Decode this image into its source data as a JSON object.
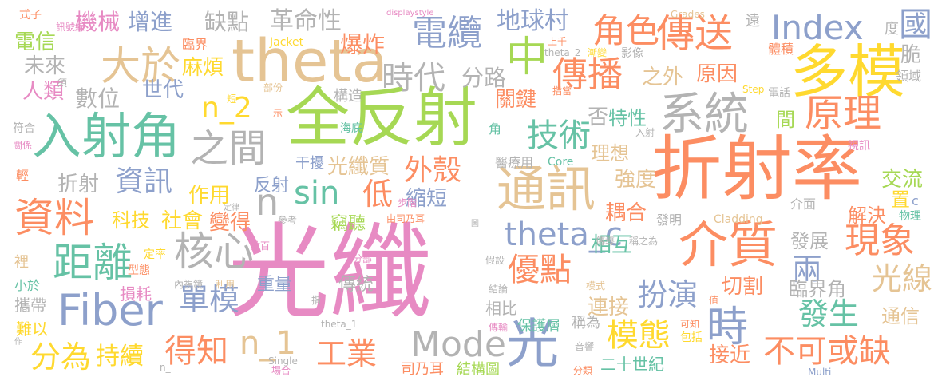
{
  "words": [
    {
      "text": "光纖",
      "color": "#e78ac3"
    },
    {
      "text": "折射率",
      "color": "#fc8d62"
    },
    {
      "text": "全反射",
      "color": "#a6d854"
    },
    {
      "text": "theta",
      "color": "#e5c494"
    },
    {
      "text": "多模",
      "color": "#ffd92f"
    },
    {
      "text": "入射角",
      "color": "#66c2a5"
    },
    {
      "text": "通訊",
      "color": "#e5c494"
    },
    {
      "text": "介質",
      "color": "#fc8d62"
    },
    {
      "text": "Fiber",
      "color": "#8da0cb"
    },
    {
      "text": "系統",
      "color": "#b3b3b3"
    },
    {
      "text": "光",
      "color": "#8da0cb"
    },
    {
      "text": "時",
      "color": "#8da0cb"
    },
    {
      "text": "距離",
      "color": "#66c2a5"
    },
    {
      "text": "資料",
      "color": "#fc8d62"
    },
    {
      "text": "大於",
      "color": "#e5c494"
    },
    {
      "text": "原理",
      "color": "#fc8d62"
    },
    {
      "text": "核心",
      "color": "#b3b3b3"
    },
    {
      "text": "傳送",
      "color": "#fc8d62"
    },
    {
      "text": "之間",
      "color": "#b3b3b3"
    },
    {
      "text": "中",
      "color": "#a6d854"
    },
    {
      "text": "電纜",
      "color": "#8da0cb"
    },
    {
      "text": "Mode",
      "color": "#b3b3b3"
    },
    {
      "text": "現象",
      "color": "#fc8d62"
    },
    {
      "text": "傳播",
      "color": "#fc8d62"
    },
    {
      "text": "角色",
      "color": "#fc8d62"
    },
    {
      "text": "theta_c",
      "color": "#8da0cb"
    },
    {
      "text": "優點",
      "color": "#fc8d62"
    },
    {
      "text": "Index",
      "color": "#8da0cb"
    },
    {
      "text": "國",
      "color": "#8da0cb"
    },
    {
      "text": "不可或缺",
      "color": "#fc8d62"
    },
    {
      "text": "時代",
      "color": "#b3b3b3"
    },
    {
      "text": "技術",
      "color": "#66c2a5"
    },
    {
      "text": "得知",
      "color": "#fc8d62"
    },
    {
      "text": "n_1",
      "color": "#e5c494"
    },
    {
      "text": "sin",
      "color": "#66c2a5"
    },
    {
      "text": "低",
      "color": "#fc8d62"
    },
    {
      "text": "n",
      "color": "#b3b3b3"
    },
    {
      "text": "分為",
      "color": "#ffd92f"
    },
    {
      "text": "單模",
      "color": "#8da0cb"
    },
    {
      "text": "工業",
      "color": "#fc8d62"
    },
    {
      "text": "模態",
      "color": "#ffd92f"
    },
    {
      "text": "n_2",
      "color": "#ffd92f"
    },
    {
      "text": "光線",
      "color": "#e5c494"
    },
    {
      "text": "扮演",
      "color": "#8da0cb"
    },
    {
      "text": "發生",
      "color": "#66c2a5"
    },
    {
      "text": "兩",
      "color": "#8da0cb"
    },
    {
      "text": "外殼",
      "color": "#fc8d62"
    },
    {
      "text": "資訊",
      "color": "#8da0cb"
    },
    {
      "text": "地球村",
      "color": "#8da0cb"
    },
    {
      "text": "革命性",
      "color": "#b3b3b3"
    },
    {
      "text": "機械",
      "color": "#e78ac3"
    },
    {
      "text": "增進",
      "color": "#8da0cb"
    },
    {
      "text": "缺點",
      "color": "#b3b3b3"
    },
    {
      "text": "爆炸",
      "color": "#fc8d62"
    },
    {
      "text": "電信",
      "color": "#a6d854"
    },
    {
      "text": "未來",
      "color": "#b3b3b3"
    },
    {
      "text": "人類",
      "color": "#e78ac3"
    },
    {
      "text": "數位",
      "color": "#b3b3b3"
    },
    {
      "text": "世代",
      "color": "#8da0cb"
    },
    {
      "text": "麻煩",
      "color": "#ffd92f"
    },
    {
      "text": "分路",
      "color": "#b3b3b3"
    },
    {
      "text": "之外",
      "color": "#e5c494"
    },
    {
      "text": "原因",
      "color": "#fc8d62"
    },
    {
      "text": "關鍵",
      "color": "#fc8d62"
    },
    {
      "text": "否",
      "color": "#b3b3b3"
    },
    {
      "text": "特性",
      "color": "#66c2a5"
    },
    {
      "text": "理想",
      "color": "#e5c494"
    },
    {
      "text": "間",
      "color": "#a6d854"
    },
    {
      "text": "光纖質",
      "color": "#e5c494"
    },
    {
      "text": "強度",
      "color": "#e5c494"
    },
    {
      "text": "交流",
      "color": "#a6d854"
    },
    {
      "text": "縮短",
      "color": "#8da0cb"
    },
    {
      "text": "置",
      "color": "#ffd92f"
    },
    {
      "text": "耦合",
      "color": "#fc8d62"
    },
    {
      "text": "解決",
      "color": "#fc8d62"
    },
    {
      "text": "相互",
      "color": "#66c2a5"
    },
    {
      "text": "發展",
      "color": "#b3b3b3"
    },
    {
      "text": "作用",
      "color": "#ffd92f"
    },
    {
      "text": "反射",
      "color": "#8da0cb"
    },
    {
      "text": "折射",
      "color": "#b3b3b3"
    },
    {
      "text": "科技",
      "color": "#ffd92f"
    },
    {
      "text": "社會",
      "color": "#ffd92f"
    },
    {
      "text": "變得",
      "color": "#fc8d62"
    },
    {
      "text": "持續",
      "color": "#ffd92f"
    },
    {
      "text": "切割",
      "color": "#fc8d62"
    },
    {
      "text": "臨界角",
      "color": "#b3b3b3"
    },
    {
      "text": "連接",
      "color": "#e5c494"
    },
    {
      "text": "通信",
      "color": "#e5c494"
    },
    {
      "text": "接近",
      "color": "#fc8d62"
    },
    {
      "text": "二十世紀",
      "color": "#66c2a5"
    },
    {
      "text": "重量",
      "color": "#8da0cb"
    },
    {
      "text": "傳統",
      "color": "#b3b3b3"
    },
    {
      "text": "損耗",
      "color": "#e78ac3"
    },
    {
      "text": "攜帶",
      "color": "#b3b3b3"
    },
    {
      "text": "難以",
      "color": "#ffd92f"
    },
    {
      "text": "竊聽",
      "color": "#a6d854"
    },
    {
      "text": "干擾",
      "color": "#8da0cb"
    },
    {
      "text": "構造",
      "color": "#b3b3b3"
    },
    {
      "text": "醫療用",
      "color": "#b3b3b3"
    },
    {
      "text": "保護層",
      "color": "#66c2a5"
    },
    {
      "text": "相比",
      "color": "#b3b3b3"
    },
    {
      "text": "稱為",
      "color": "#b3b3b3"
    },
    {
      "text": "司乃耳",
      "color": "#fc8d62"
    },
    {
      "text": "結構圖",
      "color": "#a6d854"
    },
    {
      "text": "體積",
      "color": "#fc8d62"
    },
    {
      "text": "脆",
      "color": "#b3b3b3"
    },
    {
      "text": "度",
      "color": "#b3b3b3"
    },
    {
      "text": "遠",
      "color": "#b3b3b3"
    },
    {
      "text": "影像",
      "color": "#b3b3b3"
    },
    {
      "text": "電話",
      "color": "#b3b3b3"
    },
    {
      "text": "領域",
      "color": "#b3b3b3"
    },
    {
      "text": "視訊",
      "color": "#e78ac3"
    },
    {
      "text": "介面",
      "color": "#b3b3b3"
    },
    {
      "text": "發明",
      "color": "#b3b3b3"
    },
    {
      "text": "物理",
      "color": "#66c2a5"
    },
    {
      "text": "c",
      "color": "#8da0cb"
    },
    {
      "text": "臨界",
      "color": "#fc8d62"
    },
    {
      "text": "輕",
      "color": "#fc8d62"
    },
    {
      "text": "裡",
      "color": "#e5c494"
    },
    {
      "text": "小於",
      "color": "#66c2a5"
    },
    {
      "text": "型態",
      "color": "#fc8d62"
    },
    {
      "text": "定率",
      "color": "#ffd92f"
    },
    {
      "text": "符合",
      "color": "#b3b3b3"
    },
    {
      "text": "關係",
      "color": "#e78ac3"
    },
    {
      "text": "式子",
      "color": "#fc8d62"
    },
    {
      "text": "訊號線",
      "color": "#e78ac3"
    },
    {
      "text": "須",
      "color": "#b3b3b3"
    },
    {
      "text": "displaystyle",
      "color": "#e78ac3"
    },
    {
      "text": "Grades",
      "color": "#e5c494"
    },
    {
      "text": "Jacket",
      "color": "#ffd92f"
    },
    {
      "text": "Core",
      "color": "#66c2a5"
    },
    {
      "text": "Cladding",
      "color": "#e5c494"
    },
    {
      "text": "Step",
      "color": "#ffd92f"
    },
    {
      "text": "Single",
      "color": "#b3b3b3"
    },
    {
      "text": "Multi",
      "color": "#8da0cb"
    },
    {
      "text": "theta_2",
      "color": "#b3b3b3"
    },
    {
      "text": "theta_1",
      "color": "#b3b3b3"
    },
    {
      "text": "漸變",
      "color": "#ffd92f"
    },
    {
      "text": "上千",
      "color": "#fc8d62"
    },
    {
      "text": "部份",
      "color": "#e5c494"
    },
    {
      "text": "短",
      "color": "#ffd92f"
    },
    {
      "text": "示",
      "color": "#fc8d62"
    },
    {
      "text": "海底",
      "color": "#66c2a5"
    },
    {
      "text": "角",
      "color": "#66c2a5"
    },
    {
      "text": "指當",
      "color": "#fc8d62"
    },
    {
      "text": "入射",
      "color": "#b3b3b3"
    },
    {
      "text": "步階",
      "color": "#e78ac3"
    },
    {
      "text": "由司乃耳",
      "color": "#fc8d62"
    },
    {
      "text": "定律",
      "color": "#b3b3b3"
    },
    {
      "text": "參考",
      "color": "#b3b3b3"
    },
    {
      "text": "數百",
      "color": "#e78ac3"
    },
    {
      "text": "分部",
      "color": "#e78ac3"
    },
    {
      "text": "內視鏡",
      "color": "#b3b3b3"
    },
    {
      "text": "利用",
      "color": "#e5c494"
    },
    {
      "text": "指",
      "color": "#b3b3b3"
    },
    {
      "text": "作",
      "color": "#b3b3b3"
    },
    {
      "text": "n_",
      "color": "#b3b3b3"
    },
    {
      "text": "場合",
      "color": "#e78ac3"
    },
    {
      "text": "傳導",
      "color": "#b3b3b3"
    },
    {
      "text": "稱之為",
      "color": "#b3b3b3"
    },
    {
      "text": "假設",
      "color": "#b3b3b3"
    },
    {
      "text": "結論",
      "color": "#b3b3b3"
    },
    {
      "text": "模式",
      "color": "#e5c494"
    },
    {
      "text": "傳輸",
      "color": "#e78ac3"
    },
    {
      "text": "值",
      "color": "#fc8d62"
    },
    {
      "text": "可知",
      "color": "#fc8d62"
    },
    {
      "text": "包括",
      "color": "#ffd92f"
    },
    {
      "text": "音響",
      "color": "#b3b3b3"
    },
    {
      "text": "分類",
      "color": "#fc8d62"
    },
    {
      "text": "圖",
      "color": "#b3b3b3"
    }
  ]
}
